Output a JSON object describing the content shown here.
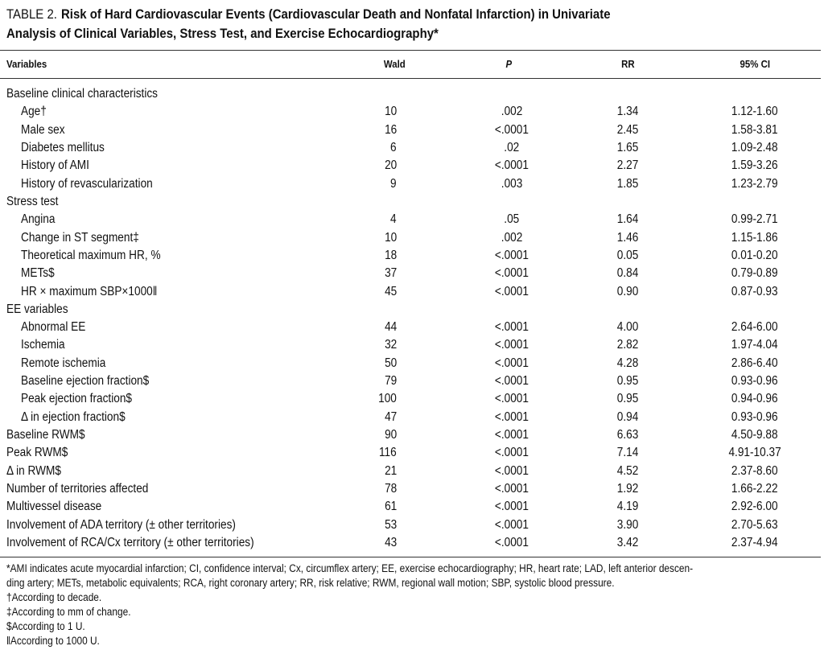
{
  "title": {
    "label": "TABLE 2.",
    "lines": [
      "Risk of Hard Cardiovascular Events (Cardiovascular Death and Nonfatal Infarction) in Univariate",
      "Analysis of Clinical Variables, Stress Test, and Exercise Echocardiography*"
    ]
  },
  "table": {
    "columns": [
      "Variables",
      "Wald",
      "P",
      "RR",
      "95% CI"
    ],
    "sections": [
      {
        "heading": "Baseline clinical characteristics",
        "rows": [
          [
            "Age†",
            "10",
            ".002",
            "1.34",
            "1.12-1.60"
          ],
          [
            "Male sex",
            "16",
            "<.0001",
            "2.45",
            "1.58-3.81"
          ],
          [
            "Diabetes mellitus",
            "6",
            ".02",
            "1.65",
            "1.09-2.48"
          ],
          [
            "History of AMI",
            "20",
            "<.0001",
            "2.27",
            "1.59-3.26"
          ],
          [
            "History of revascularization",
            "9",
            ".003",
            "1.85",
            "1.23-2.79"
          ]
        ]
      },
      {
        "heading": "Stress test",
        "rows": [
          [
            "Angina",
            "4",
            ".05",
            "1.64",
            "0.99-2.71"
          ],
          [
            "Change in ST segment‡",
            "10",
            ".002",
            "1.46",
            "1.15-1.86"
          ],
          [
            "Theoretical maximum HR, %",
            "18",
            "<.0001",
            "0.05",
            "0.01-0.20"
          ],
          [
            "METs$",
            "37",
            "<.0001",
            "0.84",
            "0.79-0.89"
          ],
          [
            "HR × maximum SBP×1000‖",
            "45",
            "<.0001",
            "0.90",
            "0.87-0.93"
          ]
        ]
      },
      {
        "heading": "EE variables",
        "rows": [
          [
            "Abnormal EE",
            "44",
            "<.0001",
            "4.00",
            "2.64-6.00"
          ],
          [
            "Ischemia",
            "32",
            "<.0001",
            "2.82",
            "1.97-4.04"
          ],
          [
            "Remote ischemia",
            "50",
            "<.0001",
            "4.28",
            "2.86-6.40"
          ],
          [
            "Baseline ejection fraction$",
            "79",
            "<.0001",
            "0.95",
            "0.93-0.96"
          ],
          [
            "Peak ejection fraction$",
            "100",
            "<.0001",
            "0.95",
            "0.94-0.96"
          ],
          [
            "Δ in ejection fraction$",
            "47",
            "<.0001",
            "0.94",
            "0.93-0.96"
          ]
        ]
      },
      {
        "rows": [
          [
            "Baseline RWM$",
            "90",
            "<.0001",
            "6.63",
            "4.50-9.88"
          ],
          [
            "Peak RWM$",
            "116",
            "<.0001",
            "7.14",
            "4.91-10.37"
          ],
          [
            "Δ in RWM$",
            "21",
            "<.0001",
            "4.52",
            "2.37-8.60"
          ],
          [
            "Number of territories affected",
            "78",
            "<.0001",
            "1.92",
            "1.66-2.22"
          ],
          [
            "Multivessel disease",
            "61",
            "<.0001",
            "4.19",
            "2.92-6.00"
          ],
          [
            "Involvement of ADA territory (± other territories)",
            "53",
            "<.0001",
            "3.90",
            "2.70-5.63"
          ],
          [
            "Involvement of RCA/Cx territory (± other territories)",
            "43",
            "<.0001",
            "3.42",
            "2.37-4.94"
          ]
        ]
      }
    ]
  },
  "footnotes": [
    [
      "*AMI indicates acute myocardial infarction; CI, confidence interval; Cx, circumflex artery; EE, exercise echocardiography; HR, heart rate; LAD, left anterior descen-",
      "ding artery; METs, metabolic equivalents; RCA, right coronary artery; RR, risk relative; RWM, regional wall motion; SBP, systolic blood pressure."
    ],
    [
      "†According to decade."
    ],
    [
      "‡According to mm of change."
    ],
    [
      "$According to 1 U."
    ],
    [
      "‖According to 1000 U."
    ]
  ]
}
